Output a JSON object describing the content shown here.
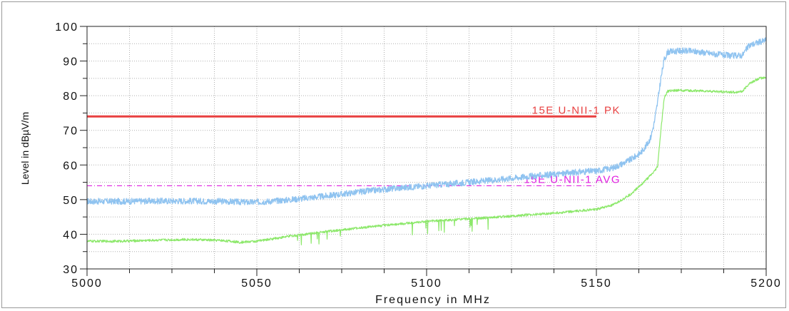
{
  "chart_data": {
    "type": "line",
    "title": "",
    "xlabel": "Frequency in MHz",
    "ylabel": "Level in dBµV/m",
    "xlim": [
      5000,
      5200
    ],
    "ylim": [
      30,
      100
    ],
    "x_ticks": [
      "5000",
      "5050",
      "5100",
      "5150",
      "5200"
    ],
    "y_ticks": [
      "30",
      "40",
      "50",
      "60",
      "70",
      "80",
      "90",
      "100"
    ],
    "grid": true,
    "series": [
      {
        "color": "#8fc3f0",
        "x": [
          5000,
          5010,
          5020,
          5030,
          5040,
          5048,
          5055,
          5060,
          5070,
          5080,
          5090,
          5100,
          5110,
          5120,
          5130,
          5140,
          5145,
          5150,
          5155,
          5160,
          5163,
          5165,
          5166,
          5167,
          5168,
          5169,
          5170,
          5171,
          5175,
          5180,
          5185,
          5190,
          5193,
          5195,
          5198,
          5200
        ],
        "values": [
          49.5,
          49.5,
          49.6,
          49.6,
          49.5,
          49.2,
          49.6,
          50.0,
          51.0,
          52.2,
          53.2,
          54.0,
          54.8,
          55.7,
          56.7,
          57.5,
          58.0,
          58.3,
          59.2,
          61.5,
          63.5,
          66.0,
          68.0,
          72.0,
          78.0,
          85.0,
          90.5,
          92.6,
          93.0,
          92.7,
          92.0,
          91.5,
          91.7,
          94.5,
          95.5,
          96.0
        ]
      },
      {
        "color": "#8ce86a",
        "x": [
          5000,
          5010,
          5020,
          5030,
          5040,
          5045,
          5050,
          5060,
          5070,
          5080,
          5090,
          5100,
          5110,
          5120,
          5130,
          5140,
          5150,
          5155,
          5160,
          5165,
          5167,
          5168,
          5169,
          5170,
          5171,
          5172,
          5175,
          5180,
          5185,
          5190,
          5193,
          5195,
          5198,
          5200
        ],
        "values": [
          38.0,
          38.0,
          38.3,
          38.5,
          38.2,
          37.7,
          38.0,
          39.5,
          40.7,
          41.8,
          42.8,
          43.7,
          44.3,
          44.9,
          45.6,
          46.3,
          47.2,
          48.5,
          51.5,
          56.0,
          58.0,
          59.5,
          70.0,
          79.5,
          81.3,
          81.5,
          81.5,
          81.4,
          81.2,
          81.0,
          81.2,
          83.5,
          85.0,
          85.2
        ]
      }
    ],
    "limit_lines": [
      {
        "label": "15E U-NII-1 PK",
        "value": 74.0,
        "x_range": [
          5000,
          5150
        ],
        "color": "#e84040",
        "style": "solid"
      },
      {
        "label": "15E U-NII-1 AVG",
        "value": 54.0,
        "x_range": [
          5000,
          5150
        ],
        "color": "#e020e0",
        "style": "dashdot"
      }
    ]
  }
}
